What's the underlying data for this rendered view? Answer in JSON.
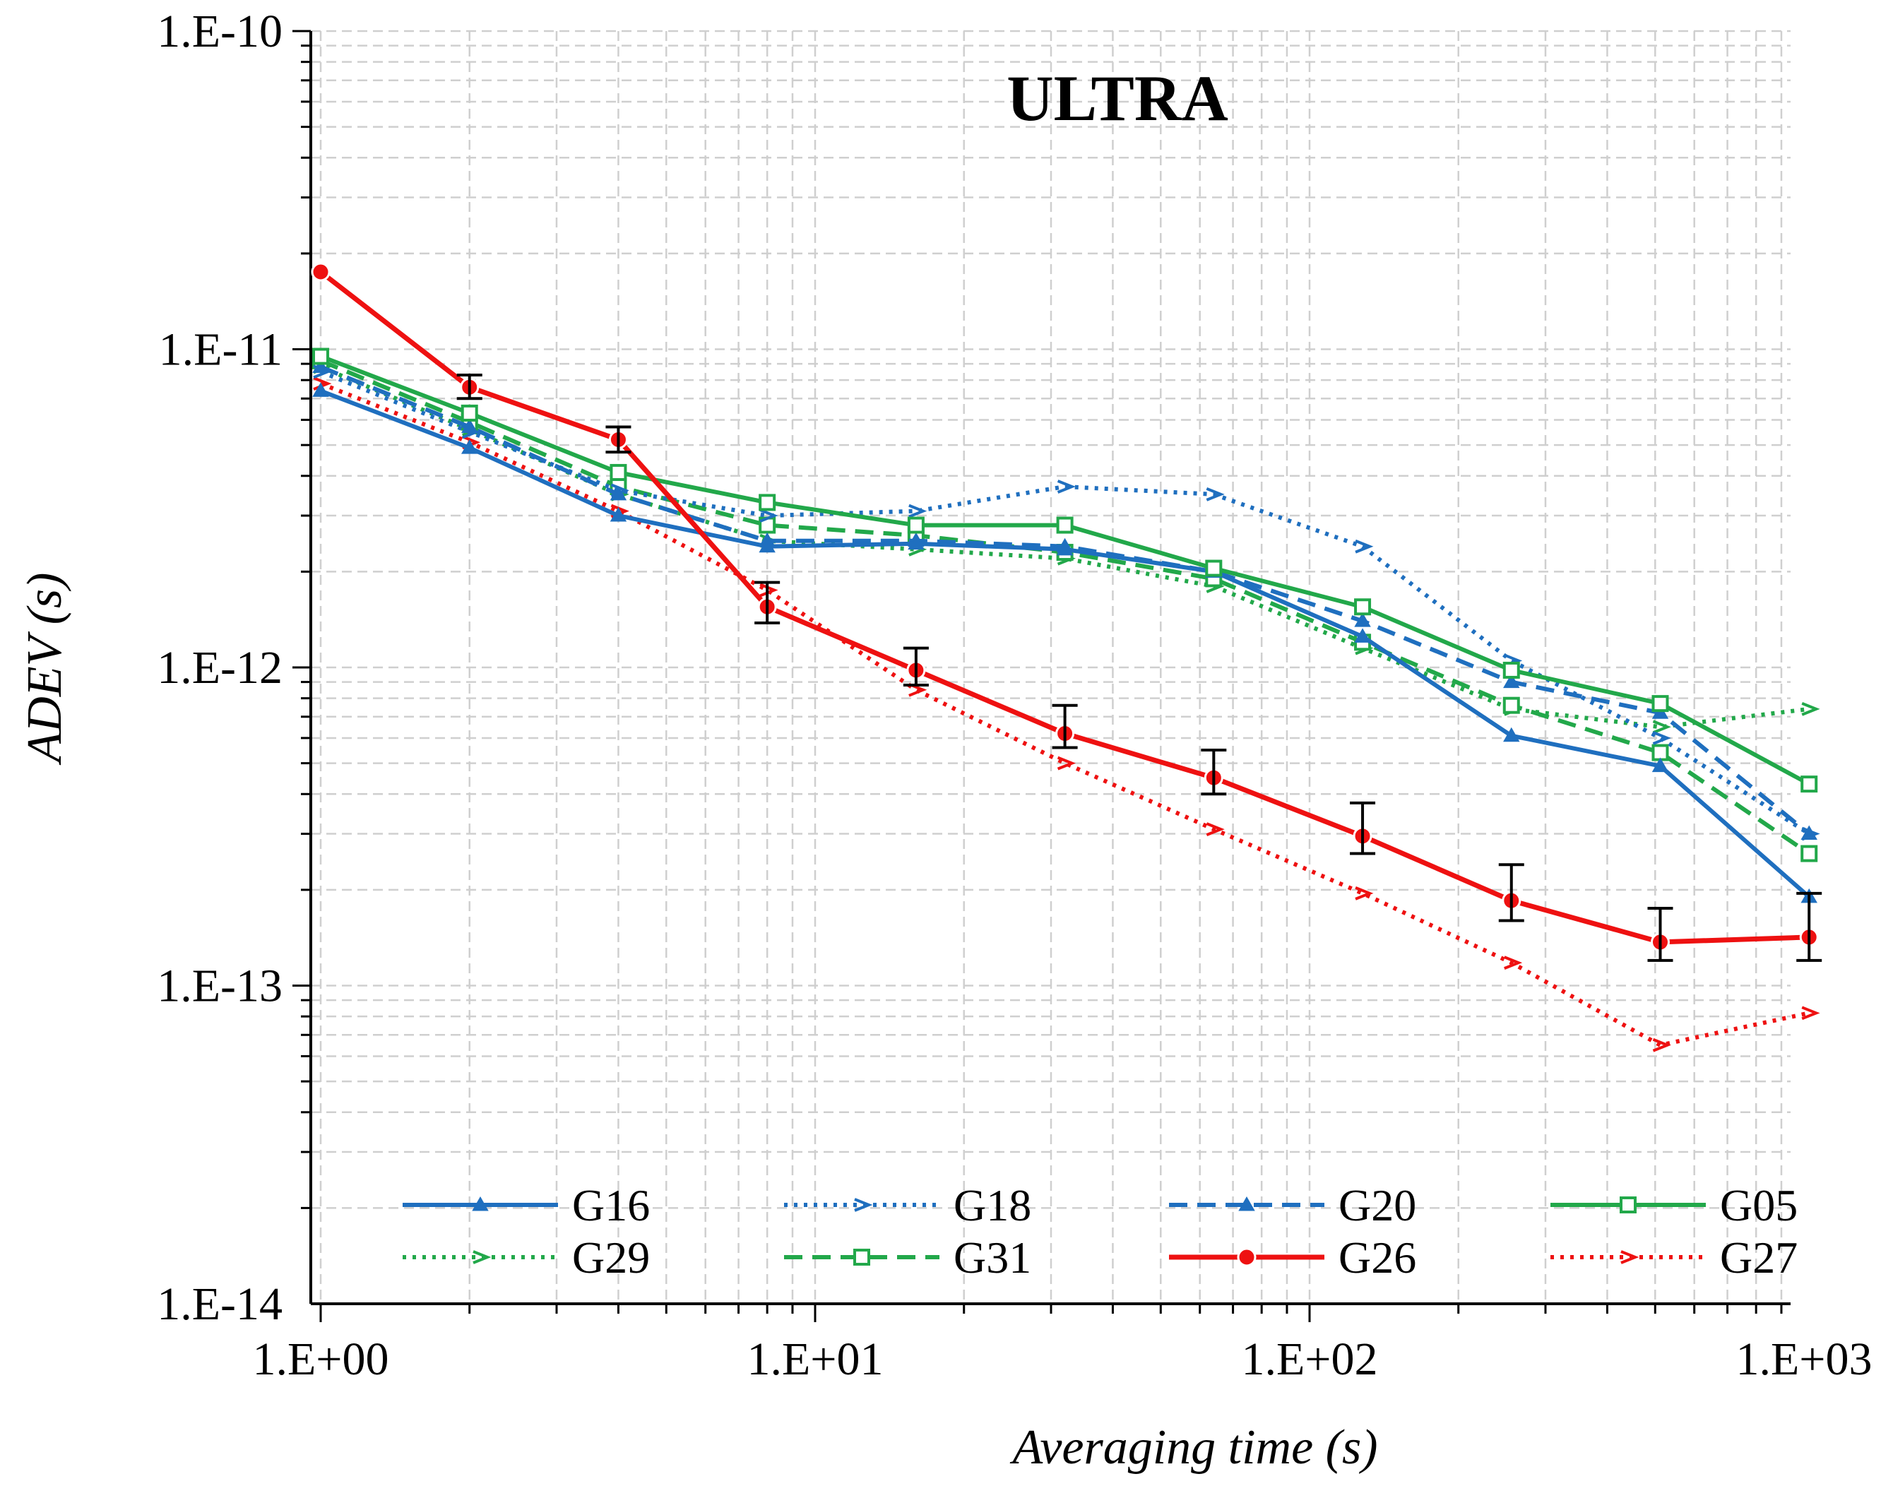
{
  "chart_data": {
    "type": "line",
    "title": "ULTRA",
    "xlabel": "Averaging time (s)",
    "ylabel": "ADEV (s)",
    "xscale": "log",
    "yscale": "log",
    "xlim": [
      1,
      1000
    ],
    "ylim": [
      1e-14,
      1e-10
    ],
    "grid": true,
    "legend_position": "bottom",
    "x": [
      1,
      2,
      4,
      8,
      16,
      32,
      64,
      128,
      256,
      512,
      1024
    ],
    "xticks": [
      {
        "value": 1,
        "label": "1.E+00"
      },
      {
        "value": 10,
        "label": "1.E+01"
      },
      {
        "value": 100,
        "label": "1.E+02"
      },
      {
        "value": 1000,
        "label": "1.E+03"
      }
    ],
    "yticks": [
      {
        "value": 1e-10,
        "label": "1.E-10"
      },
      {
        "value": 1e-11,
        "label": "1.E-11"
      },
      {
        "value": 1e-12,
        "label": "1.E-12"
      },
      {
        "value": 1e-13,
        "label": "1.E-13"
      },
      {
        "value": 1e-14,
        "label": "1.E-14"
      }
    ],
    "series": [
      {
        "name": "G16",
        "color": "#1F6FBF",
        "dash": "solid",
        "marker": "triangle",
        "values": [
          7.4e-12,
          4.9e-12,
          3e-12,
          2.4e-12,
          2.45e-12,
          2.35e-12,
          2e-12,
          1.25e-12,
          6.1e-13,
          4.9e-13,
          1.9e-13
        ]
      },
      {
        "name": "G18",
        "color": "#1F6FBF",
        "dash": "dot",
        "marker": "arrow",
        "values": [
          8.5e-12,
          5.5e-12,
          3.6e-12,
          3e-12,
          3.1e-12,
          3.7e-12,
          3.5e-12,
          2.4e-12,
          1.05e-12,
          6e-13,
          3e-13
        ]
      },
      {
        "name": "G20",
        "color": "#1F6FBF",
        "dash": "dash",
        "marker": "triangle",
        "values": [
          8.8e-12,
          5.7e-12,
          3.5e-12,
          2.5e-12,
          2.5e-12,
          2.4e-12,
          2e-12,
          1.4e-12,
          9e-13,
          7.2e-13,
          3e-13
        ]
      },
      {
        "name": "G05",
        "color": "#22A84A",
        "dash": "solid",
        "marker": "square",
        "values": [
          9.5e-12,
          6.3e-12,
          4.1e-12,
          3.3e-12,
          2.8e-12,
          2.8e-12,
          2.05e-12,
          1.55e-12,
          9.8e-13,
          7.7e-13,
          4.3e-13
        ]
      },
      {
        "name": "G29",
        "color": "#22A84A",
        "dash": "dot",
        "marker": "arrow",
        "values": [
          8.8e-12,
          5.6e-12,
          3.5e-12,
          2.5e-12,
          2.35e-12,
          2.2e-12,
          1.8e-12,
          1.15e-12,
          7.4e-13,
          6.5e-13,
          7.4e-13
        ]
      },
      {
        "name": "G31",
        "color": "#22A84A",
        "dash": "dash",
        "marker": "square",
        "values": [
          9.2e-12,
          5.9e-12,
          3.7e-12,
          2.8e-12,
          2.6e-12,
          2.3e-12,
          1.9e-12,
          1.2e-12,
          7.6e-13,
          5.4e-13,
          2.6e-13
        ]
      },
      {
        "name": "G26",
        "color": "#EE1111",
        "dash": "solid",
        "marker": "circle",
        "values": [
          1.75e-11,
          7.6e-12,
          5.2e-12,
          1.55e-12,
          9.8e-13,
          6.2e-13,
          4.5e-13,
          2.95e-13,
          1.85e-13,
          1.37e-13,
          1.42e-13
        ],
        "error_low": [
          null,
          7e-12,
          4.75e-12,
          1.38e-12,
          8.8e-13,
          5.6e-13,
          4e-13,
          2.6e-13,
          1.6e-13,
          1.2e-13,
          1.2e-13
        ],
        "error_high": [
          null,
          8.3e-12,
          5.7e-12,
          1.85e-12,
          1.15e-12,
          7.6e-13,
          5.5e-13,
          3.75e-13,
          2.4e-13,
          1.75e-13,
          1.95e-13
        ]
      },
      {
        "name": "G27",
        "color": "#EE1111",
        "dash": "dot",
        "marker": "arrow",
        "values": [
          7.8e-12,
          5.1e-12,
          3.1e-12,
          1.75e-12,
          8.5e-13,
          5e-13,
          3.1e-13,
          1.95e-13,
          1.18e-13,
          6.5e-14,
          8.2e-14
        ]
      }
    ]
  }
}
